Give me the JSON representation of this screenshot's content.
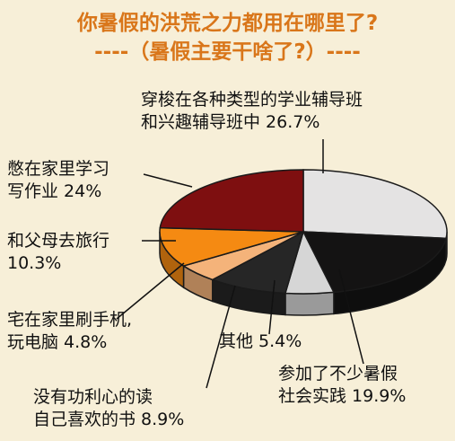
{
  "title": "你暑假的洪荒之力都用在哪里了?",
  "subtitle": "----（暑假主要干啥了?）----",
  "chart_data": {
    "type": "pie",
    "title": "你暑假的洪荒之力都用在哪里了?",
    "subtitle": "----（暑假主要干啥了?）----",
    "slices": [
      {
        "key": "s1",
        "label_lines": [
          "穿梭在各种类型的学业辅导班",
          "和兴趣辅导班中 26.7%"
        ],
        "value": 26.7,
        "color": "#e4e3e3"
      },
      {
        "key": "s2",
        "label_lines": [
          "参加了不少暑假",
          "社会实践 19.9%"
        ],
        "value": 19.9,
        "color": "#141313"
      },
      {
        "key": "s3",
        "label_lines": [
          "其他 5.4%"
        ],
        "value": 5.4,
        "color": "#d6d6d6"
      },
      {
        "key": "s4",
        "label_lines": [
          "没有功利心的读",
          "自己喜欢的书 8.9%"
        ],
        "value": 8.9,
        "color": "#262626"
      },
      {
        "key": "s5",
        "label_lines": [
          "宅在家里刷手机,",
          "玩电脑 4.8%"
        ],
        "value": 4.8,
        "color": "#f4b37a"
      },
      {
        "key": "s6",
        "label_lines": [
          "和父母去旅行",
          "10.3%"
        ],
        "value": 10.3,
        "color": "#f58a12"
      },
      {
        "key": "s7",
        "label_lines": [
          "憋在家里学习",
          "写作业 24%"
        ],
        "value": 24.0,
        "color": "#7e0f10"
      }
    ]
  }
}
